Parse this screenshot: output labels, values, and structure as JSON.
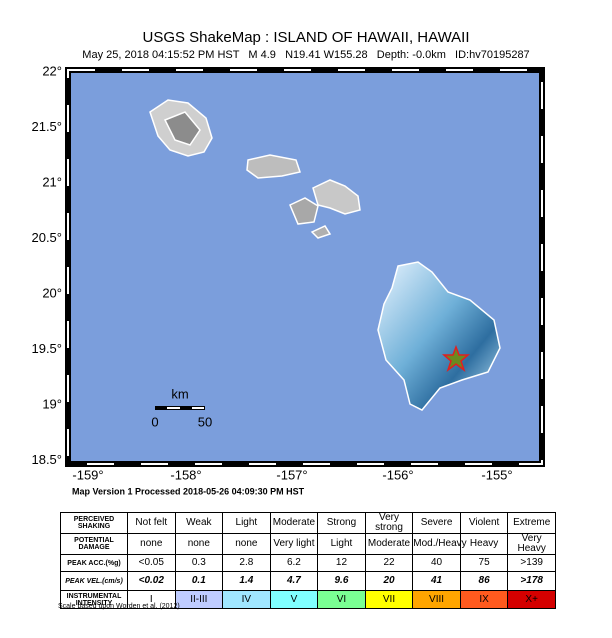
{
  "header": {
    "title": "USGS ShakeMap : ISLAND OF HAWAII, HAWAII",
    "subtitle": "May 25, 2018 04:15:52 PM HST   M 4.9   N19.41 W155.28   Depth: -0.0km   ID:hv70195287"
  },
  "map": {
    "lat_labels": [
      "22°",
      "21.5°",
      "21°",
      "20.5°",
      "20°",
      "19.5°",
      "19°",
      "18.5°"
    ],
    "lon_labels": [
      "-159°",
      "-158°",
      "-157°",
      "-156°",
      "-155°"
    ],
    "scale": {
      "unit": "km",
      "labels": [
        "0",
        "50"
      ]
    },
    "version": "Map Version 1 Processed 2018-05-26 04:09:30 PM HST"
  },
  "legend": {
    "rows": [
      {
        "label": "PERCEIVED SHAKING",
        "cells": [
          "Not felt",
          "Weak",
          "Light",
          "Moderate",
          "Strong",
          "Very strong",
          "Severe",
          "Violent",
          "Extreme"
        ]
      },
      {
        "label": "POTENTIAL DAMAGE",
        "cells": [
          "none",
          "none",
          "none",
          "Very light",
          "Light",
          "Moderate",
          "Mod./Heavy",
          "Heavy",
          "Very Heavy"
        ]
      },
      {
        "label": "PEAK ACC.(%g)",
        "cells": [
          "<0.05",
          "0.3",
          "2.8",
          "6.2",
          "12",
          "22",
          "40",
          "75",
          ">139"
        ]
      },
      {
        "label": "PEAK VEL.(cm/s)",
        "cells": [
          "<0.02",
          "0.1",
          "1.4",
          "4.7",
          "9.6",
          "20",
          "41",
          "86",
          ">178"
        ]
      },
      {
        "label": "INSTRUMENTAL INTENSITY",
        "cells": [
          "I",
          "II-III",
          "IV",
          "V",
          "VI",
          "VII",
          "VIII",
          "IX",
          "X+"
        ]
      }
    ],
    "colors": [
      "#ffffff",
      "#bfccff",
      "#a0e6ff",
      "#80ffff",
      "#7aff93",
      "#ffff00",
      "#ffa500",
      "#ff5a1e",
      "#d40000"
    ]
  },
  "footer": "Scale based upon Worden et al. (2012)"
}
